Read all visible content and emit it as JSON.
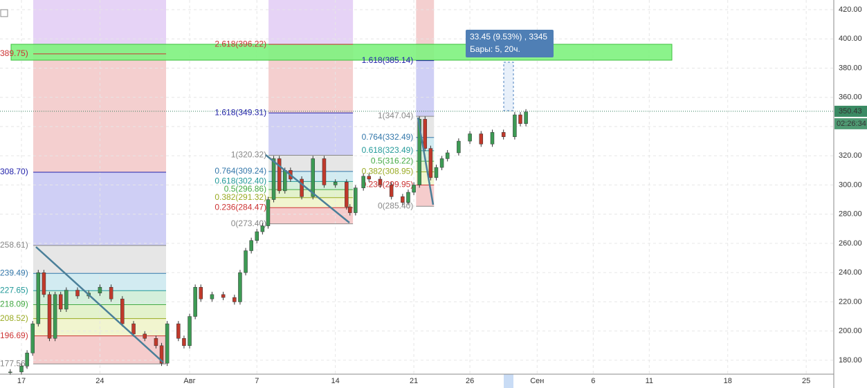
{
  "chart_data": {
    "type": "candlestick",
    "xlim": [
      -1.914,
      72.46
    ],
    "ylim": [
      170.5,
      426.6
    ],
    "xticks": [
      {
        "value": 0,
        "label": "17"
      },
      {
        "value": 7,
        "label": "24"
      },
      {
        "value": 15,
        "label": "Авг"
      },
      {
        "value": 21,
        "label": "7"
      },
      {
        "value": 28,
        "label": "14"
      },
      {
        "value": 35,
        "label": "21"
      },
      {
        "value": 40,
        "label": "26"
      },
      {
        "value": 46,
        "label": "Сен"
      },
      {
        "value": 51,
        "label": "6"
      },
      {
        "value": 56,
        "label": "11"
      },
      {
        "value": 63,
        "label": "18"
      },
      {
        "value": 70,
        "label": "25"
      }
    ],
    "yticks": [
      {
        "value": 180,
        "label": "180.00"
      },
      {
        "value": 200,
        "label": "200.00"
      },
      {
        "value": 220,
        "label": "220.00"
      },
      {
        "value": 240,
        "label": "240.00"
      },
      {
        "value": 260,
        "label": "260.00"
      },
      {
        "value": 280,
        "label": "280.00"
      },
      {
        "value": 300,
        "label": "300.00"
      },
      {
        "value": 320,
        "label": "320.00"
      },
      {
        "value": 340,
        "label": "340.00"
      },
      {
        "value": 360,
        "label": "360.00"
      },
      {
        "value": 380,
        "label": "380.00"
      },
      {
        "value": 400,
        "label": "400.00"
      },
      {
        "value": 420,
        "label": "420.00"
      }
    ],
    "grid": true,
    "x": [
      -1,
      0,
      0.5,
      1,
      1.5,
      2,
      2.5,
      3,
      3.5,
      4,
      5,
      6,
      7,
      8,
      9,
      10,
      11,
      12,
      12.5,
      13,
      14,
      14.5,
      15,
      15.5,
      16,
      17,
      18,
      19,
      19.5,
      20,
      20.5,
      21,
      21.5,
      22,
      22.5,
      23,
      23.5,
      24,
      25,
      26,
      27,
      28,
      29,
      29.3,
      29.8,
      30.5,
      31,
      32,
      33,
      34,
      34.5,
      35,
      35.5,
      36,
      36.5,
      37,
      37.5,
      38,
      39,
      40,
      41,
      42,
      43,
      44,
      44.5,
      45
    ],
    "closes": [
      172,
      176,
      185,
      205,
      240,
      225,
      195,
      225,
      215,
      228,
      224,
      226,
      230,
      222,
      205,
      198,
      195,
      190,
      178,
      205,
      195,
      190,
      210,
      230,
      222,
      225,
      223,
      220,
      240,
      255,
      262,
      268,
      272,
      290,
      318,
      296,
      310,
      304,
      292,
      318,
      300,
      302,
      285,
      281,
      298,
      306,
      304,
      300,
      292,
      288,
      295,
      300,
      345,
      325,
      305,
      312,
      318,
      322,
      330,
      335,
      328,
      336,
      333,
      348,
      342,
      350
    ],
    "up_color": "#3d9a54",
    "down_color": "#c0392b",
    "fib_sets": [
      {
        "x": [
          1.05,
          12.9
        ],
        "label_side": "left",
        "levels": [
          {
            "value": 177.56,
            "label": "177.56)",
            "color": "#888888",
            "fill": "#f5cccc"
          },
          {
            "value": 196.69,
            "label": "196.69)",
            "color": "#cc3333",
            "fill": "#f1f5cf"
          },
          {
            "value": 208.52,
            "label": "208.52)",
            "color": "#99aa22",
            "fill": "#e3f2cc"
          },
          {
            "value": 218.09,
            "label": "218.09)",
            "color": "#44aa44",
            "fill": "#d4efdb"
          },
          {
            "value": 227.65,
            "label": "227.65)",
            "color": "#229999",
            "fill": "#d2ebf1"
          },
          {
            "value": 239.49,
            "label": "239.49)",
            "color": "#3377aa",
            "fill": "#e6e6e6"
          },
          {
            "value": 258.61,
            "label": "258.61)",
            "color": "#888888",
            "fill": "#cfcff5"
          },
          {
            "value": 308.7,
            "label": "308.70)",
            "color": "#2222aa",
            "fill": "#f4cfcf"
          },
          {
            "value": 389.75,
            "label": "389.75)",
            "color": "#cc3333",
            "fill": "#e6d3f6"
          }
        ]
      },
      {
        "x": [
          22.04,
          29.57
        ],
        "label_side": "right",
        "levels": [
          {
            "value": 273.4,
            "label": "0(273.40)",
            "color": "#888888",
            "fill": "#f5cccc"
          },
          {
            "value": 284.47,
            "label": "0.236(284.47)",
            "color": "#cc3333",
            "fill": "#f1f5cf"
          },
          {
            "value": 291.32,
            "label": "0.382(291.32)",
            "color": "#99aa22",
            "fill": "#e3f2cc"
          },
          {
            "value": 296.86,
            "label": "0.5(296.86)",
            "color": "#44aa44",
            "fill": "#d4efdb"
          },
          {
            "value": 302.4,
            "label": "0.618(302.40)",
            "color": "#229999",
            "fill": "#d2ebf1"
          },
          {
            "value": 309.24,
            "label": "0.764(309.24)",
            "color": "#3377aa",
            "fill": "#e6e6e6"
          },
          {
            "value": 320.32,
            "label": "1(320.32)",
            "color": "#888888",
            "fill": "#cfcff5"
          },
          {
            "value": 349.31,
            "label": "1.618(349.31)",
            "color": "#2222aa",
            "fill": "#f4cfcf"
          },
          {
            "value": 396.22,
            "label": "2.618(396.22)",
            "color": "#cc3333",
            "fill": "#e6d3f6"
          }
        ]
      },
      {
        "x": [
          35.2,
          36.8
        ],
        "label_side": "right",
        "levels": [
          {
            "value": 285.4,
            "label": "0(285.40)",
            "color": "#888888",
            "fill": "#f5cccc"
          },
          {
            "value": 299.95,
            "label": "0.236(299.95)",
            "color": "#cc3333",
            "fill": "#f1f5cf"
          },
          {
            "value": 308.95,
            "label": "0.382(308.95)",
            "color": "#99aa22",
            "fill": "#e3f2cc"
          },
          {
            "value": 316.22,
            "label": "0.5(316.22)",
            "color": "#44aa44",
            "fill": "#d4efdb"
          },
          {
            "value": 323.49,
            "label": "0.618(323.49)",
            "color": "#229999",
            "fill": "#d2ebf1"
          },
          {
            "value": 332.49,
            "label": "0.764(332.49)",
            "color": "#3377aa",
            "fill": "#e6e6e6"
          },
          {
            "value": 347.04,
            "label": "1(347.04)",
            "color": "#888888",
            "fill": "#cfcff5"
          },
          {
            "value": 385.14,
            "label": "1.618(385.14)",
            "color": "#2222aa",
            "fill": "#f4cfcf"
          }
        ]
      }
    ],
    "last_price": {
      "value": 350.43,
      "label": "350.43"
    },
    "timer": "02:26:34",
    "tooltip": [
      "33.45 (9.53%) , 3345",
      "Бары: 5, 20ч."
    ]
  }
}
